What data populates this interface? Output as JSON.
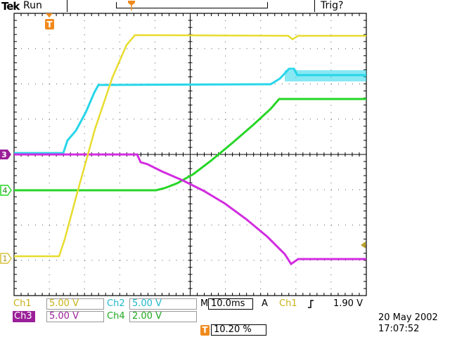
{
  "header": {
    "brand": "Tek",
    "acquisition_state": "Run",
    "trigger_state": "Trig?"
  },
  "markers": {
    "trigger_position": "T",
    "ch1": "1",
    "ch3": "3",
    "ch4": "4"
  },
  "readouts": {
    "ch1_label": "Ch1",
    "ch1_scale": "5.00 V",
    "ch2_label": "Ch2",
    "ch2_scale": "5.00 V",
    "ch3_label": "Ch3",
    "ch3_scale": "5.00 V",
    "ch4_label": "Ch4",
    "ch4_scale": "2.00 V",
    "timebase_label": "M",
    "timebase_value": "10.0ms",
    "trigger_mode": "A",
    "trigger_source": "Ch1",
    "trigger_level": "1.90 V",
    "trigger_pos_marker": "T",
    "trigger_pos_value": "10.20 %"
  },
  "datetime": {
    "date": "20 May 2002",
    "time": "17:07:52"
  },
  "colors": {
    "ch1": "#e8dc2e",
    "ch2": "#27d6ea",
    "ch3": "#d22ce0",
    "ch4": "#26d626",
    "ch3_tag": "#9b1f99",
    "trigger": "#f08a1c"
  }
}
